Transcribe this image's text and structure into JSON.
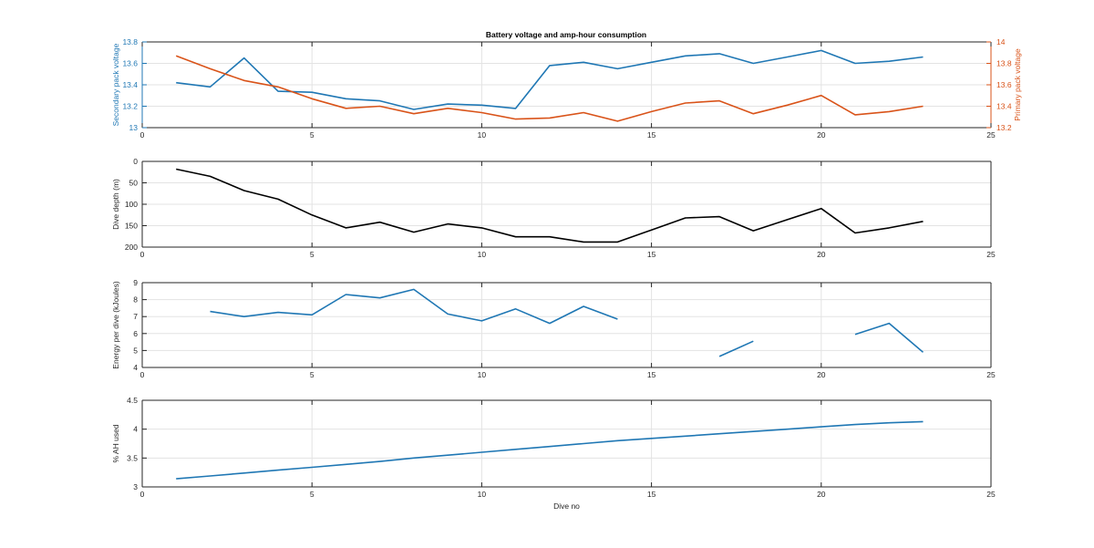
{
  "title": "Battery voltage and amp-hour consumption",
  "colors": {
    "blue": "#1f77b4",
    "orange": "#d95319",
    "black": "#000000",
    "axis": "#262626",
    "grid": "#e3e3e3",
    "background": "#ffffff"
  },
  "chart_data": [
    {
      "type": "line",
      "title": "Battery voltage and amp-hour consumption",
      "xlabel": "",
      "xlim": [
        0,
        25
      ],
      "xticks": [
        0,
        5,
        10,
        15,
        20,
        25
      ],
      "grid": true,
      "ylabel": "Secondary pack voltage",
      "ylim": [
        13,
        13.8
      ],
      "yticks": [
        "13",
        "13.2",
        "13.4",
        "13.6",
        "13.8"
      ],
      "y2label": "Primary pack voltage",
      "y2lim": [
        13.2,
        14
      ],
      "y2ticks": [
        "13.2",
        "13.4",
        "13.6",
        "13.8",
        "14"
      ],
      "series": [
        {
          "axis": "left",
          "color": "blue",
          "x": [
            1,
            2,
            3,
            4,
            5,
            6,
            7,
            8,
            9,
            10,
            11,
            12,
            13,
            14,
            15,
            16,
            17,
            18,
            19,
            20,
            21,
            22,
            23
          ],
          "values": [
            13.42,
            13.38,
            13.65,
            13.34,
            13.33,
            13.27,
            13.25,
            13.17,
            13.22,
            13.21,
            13.18,
            13.58,
            13.61,
            13.55,
            13.61,
            13.67,
            13.69,
            13.6,
            13.66,
            13.72,
            13.6,
            13.62,
            13.66
          ]
        },
        {
          "axis": "right",
          "color": "orange",
          "x": [
            1,
            2,
            3,
            4,
            5,
            6,
            7,
            8,
            9,
            10,
            11,
            12,
            13,
            14,
            15,
            16,
            17,
            18,
            19,
            20,
            21,
            22,
            23
          ],
          "values": [
            13.87,
            13.75,
            13.64,
            13.58,
            13.47,
            13.38,
            13.4,
            13.33,
            13.38,
            13.34,
            13.28,
            13.29,
            13.34,
            13.26,
            13.35,
            13.43,
            13.45,
            13.33,
            13.41,
            13.5,
            13.32,
            13.35,
            13.4
          ]
        }
      ]
    },
    {
      "type": "line",
      "xlabel": "",
      "xlim": [
        0,
        25
      ],
      "xticks": [
        0,
        5,
        10,
        15,
        20,
        25
      ],
      "grid": true,
      "ylabel": "Dive depth (m)",
      "ylim": [
        0,
        200
      ],
      "yreversed": true,
      "yticks": [
        "0",
        "50",
        "100",
        "150",
        "200"
      ],
      "series": [
        {
          "axis": "left",
          "color": "black",
          "x": [
            1,
            2,
            3,
            4,
            5,
            6,
            7,
            8,
            9,
            10,
            11,
            12,
            13,
            14,
            15,
            16,
            17,
            18,
            19,
            20,
            21,
            22,
            23
          ],
          "values": [
            18,
            35,
            68,
            88,
            125,
            155,
            142,
            165,
            146,
            155,
            176,
            176,
            188,
            188,
            160,
            132,
            129,
            162,
            136,
            110,
            167,
            155,
            140
          ]
        }
      ]
    },
    {
      "type": "line",
      "xlabel": "",
      "xlim": [
        0,
        25
      ],
      "xticks": [
        0,
        5,
        10,
        15,
        20,
        25
      ],
      "grid": true,
      "ylabel": "Energy per dive (kJoules)",
      "ylim": [
        4,
        9
      ],
      "yticks": [
        "4",
        "5",
        "6",
        "7",
        "8",
        "9"
      ],
      "series": [
        {
          "axis": "left",
          "color": "blue",
          "x": [
            1,
            2,
            3,
            4,
            5,
            6,
            7,
            8,
            9,
            10,
            11,
            12,
            13,
            14,
            15,
            16,
            17,
            18,
            19,
            20,
            21,
            22,
            23
          ],
          "values": [
            null,
            7.3,
            7.0,
            7.25,
            7.1,
            8.3,
            8.1,
            8.6,
            7.15,
            6.75,
            7.45,
            6.6,
            7.6,
            6.85,
            null,
            null,
            4.65,
            5.55,
            null,
            null,
            5.95,
            6.6,
            4.9
          ]
        }
      ]
    },
    {
      "type": "line",
      "xlabel": "Dive no",
      "xlim": [
        0,
        25
      ],
      "xticks": [
        0,
        5,
        10,
        15,
        20,
        25
      ],
      "grid": true,
      "ylabel": "% AH used",
      "ylim": [
        3,
        4.5
      ],
      "yticks": [
        "3",
        "3.5",
        "4",
        "4.5"
      ],
      "series": [
        {
          "axis": "left",
          "color": "blue",
          "x": [
            1,
            2,
            3,
            4,
            5,
            6,
            7,
            8,
            9,
            10,
            11,
            12,
            13,
            14,
            15,
            16,
            17,
            18,
            19,
            20,
            21,
            22,
            23
          ],
          "values": [
            3.14,
            3.19,
            3.24,
            3.29,
            3.34,
            3.39,
            3.44,
            3.5,
            3.55,
            3.6,
            3.65,
            3.7,
            3.75,
            3.8,
            3.84,
            3.88,
            3.92,
            3.96,
            4.0,
            4.04,
            4.08,
            4.11,
            4.13
          ]
        }
      ]
    }
  ]
}
